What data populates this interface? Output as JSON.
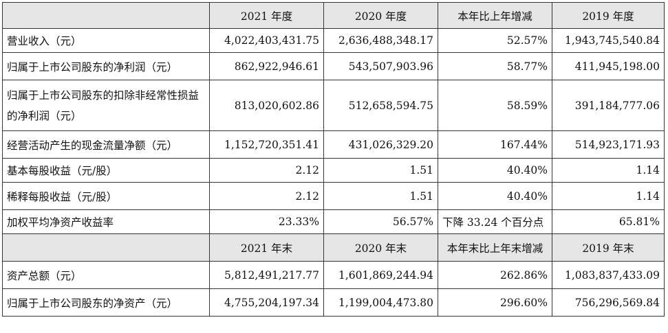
{
  "table": {
    "header1": [
      "",
      "2021 年度",
      "2020 年度",
      "本年比上年增减",
      "2019 年度"
    ],
    "rows1": [
      {
        "label": "营业收入（元）",
        "v2021": "4,022,403,431.75",
        "v2020": "2,636,488,348.17",
        "change": "52.57%",
        "v2019": "1,943,745,540.84"
      },
      {
        "label": "归属于上市公司股东的净利润（元）",
        "v2021": "862,922,946.61",
        "v2020": "543,507,903.96",
        "change": "58.77%",
        "v2019": "411,945,198.00"
      },
      {
        "label": "归属于上市公司股东的扣除非经常性损益的净利润（元）",
        "v2021": "813,020,602.86",
        "v2020": "512,658,594.75",
        "change": "58.59%",
        "v2019": "391,184,777.06"
      },
      {
        "label": "经营活动产生的现金流量净额（元）",
        "v2021": "1,152,720,351.41",
        "v2020": "431,026,329.20",
        "change": "167.44%",
        "v2019": "514,923,171.93"
      },
      {
        "label": "基本每股收益（元/股）",
        "v2021": "2.12",
        "v2020": "1.51",
        "change": "40.40%",
        "v2019": "1.14"
      },
      {
        "label": "稀释每股收益（元/股）",
        "v2021": "2.12",
        "v2020": "1.51",
        "change": "40.40%",
        "v2019": "1.14"
      },
      {
        "label": "加权平均净资产收益率",
        "v2021": "23.33%",
        "v2020": "56.57%",
        "change": "下降 33.24 个百分点",
        "v2019": "65.81%"
      }
    ],
    "header2": [
      "",
      "2021 年末",
      "2020 年末",
      "本年末比上年末增减",
      "2019 年末"
    ],
    "rows2": [
      {
        "label": "资产总额（元）",
        "v2021": "5,812,491,217.77",
        "v2020": "1,601,869,244.94",
        "change": "262.86%",
        "v2019": "1,083,837,433.09"
      },
      {
        "label": "归属于上市公司股东的净资产（元）",
        "v2021": "4,755,204,197.34",
        "v2020": "1,199,004,473.80",
        "change": "296.60%",
        "v2019": "756,296,569.84"
      }
    ]
  }
}
